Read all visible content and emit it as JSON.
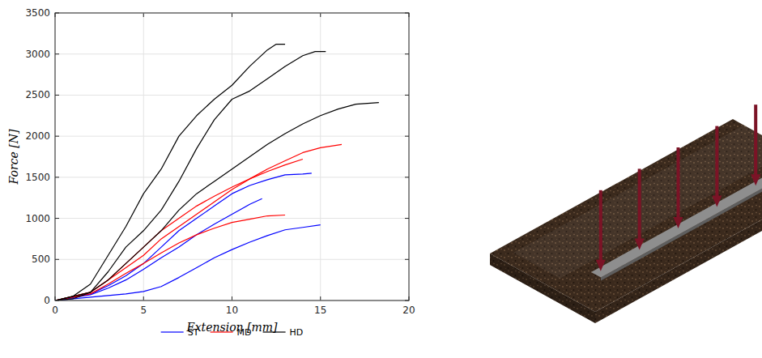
{
  "chart_data": {
    "type": "line",
    "xlabel": "Extension [mm]",
    "ylabel": "Force [N]",
    "xlim": [
      0,
      20
    ],
    "xticks": [
      0,
      5,
      10,
      15,
      20
    ],
    "ylim": [
      0,
      3500
    ],
    "yticks": [
      0,
      500,
      1000,
      1500,
      2000,
      2500,
      3000,
      3500
    ],
    "grid": true,
    "legend": "bottom",
    "series": [
      {
        "name": "ST",
        "color": "#0000ff",
        "x": [
          0,
          2,
          3,
          4,
          5,
          6,
          7,
          8,
          9,
          10,
          11,
          12,
          13,
          14,
          14.5
        ],
        "values": [
          0,
          80,
          180,
          300,
          450,
          650,
          850,
          1000,
          1150,
          1300,
          1400,
          1470,
          1530,
          1540,
          1550
        ]
      },
      {
        "name": "ST",
        "color": "#0000ff",
        "x": [
          0,
          2,
          3,
          4,
          5,
          6,
          7,
          8,
          9,
          10,
          11,
          11.7
        ],
        "values": [
          0,
          70,
          150,
          250,
          380,
          520,
          650,
          800,
          930,
          1050,
          1170,
          1240
        ]
      },
      {
        "name": "ST",
        "color": "#0000ff",
        "x": [
          0,
          2,
          3,
          4,
          5,
          6,
          7,
          8,
          9,
          10,
          11,
          12,
          13,
          14,
          15
        ],
        "values": [
          0,
          40,
          60,
          80,
          110,
          170,
          280,
          400,
          520,
          620,
          710,
          790,
          860,
          890,
          920
        ]
      },
      {
        "name": "MD",
        "color": "#ff0000",
        "x": [
          0,
          2,
          3,
          4,
          5,
          6,
          7,
          8,
          9,
          10,
          11,
          12,
          13,
          14,
          15,
          16.2
        ],
        "values": [
          0,
          100,
          250,
          400,
          550,
          750,
          900,
          1050,
          1200,
          1350,
          1480,
          1600,
          1700,
          1800,
          1860,
          1900
        ]
      },
      {
        "name": "MD",
        "color": "#ff0000",
        "x": [
          0,
          2,
          3,
          4,
          5,
          6,
          7,
          8,
          9,
          10,
          11,
          12,
          13,
          14
        ],
        "values": [
          0,
          100,
          250,
          450,
          650,
          850,
          1000,
          1150,
          1270,
          1380,
          1480,
          1570,
          1650,
          1720
        ]
      },
      {
        "name": "MD",
        "color": "#ff0000",
        "x": [
          0,
          2,
          3,
          4,
          5,
          6,
          7,
          8,
          9,
          10,
          11,
          12,
          13
        ],
        "values": [
          0,
          80,
          200,
          330,
          450,
          580,
          700,
          800,
          880,
          950,
          990,
          1030,
          1040
        ]
      },
      {
        "name": "HD",
        "color": "#000000",
        "x": [
          0,
          1,
          2,
          3,
          4,
          5,
          6,
          7,
          8,
          9,
          10,
          11,
          12,
          12.5,
          13
        ],
        "values": [
          0,
          50,
          200,
          550,
          900,
          1300,
          1600,
          2000,
          2250,
          2450,
          2620,
          2850,
          3050,
          3120,
          3120
        ]
      },
      {
        "name": "HD",
        "color": "#000000",
        "x": [
          0,
          1,
          2,
          3,
          4,
          5,
          6,
          7,
          8,
          9,
          10,
          11,
          12,
          13,
          14,
          14.7,
          15.3
        ],
        "values": [
          0,
          20,
          100,
          350,
          650,
          850,
          1100,
          1450,
          1850,
          2200,
          2450,
          2550,
          2700,
          2850,
          2980,
          3030,
          3030
        ]
      },
      {
        "name": "HD",
        "color": "#000000",
        "x": [
          0,
          2,
          3,
          4,
          5,
          6,
          7,
          8,
          9,
          10,
          11,
          12,
          13,
          14,
          15,
          16,
          17,
          18.3
        ],
        "values": [
          0,
          100,
          250,
          450,
          650,
          850,
          1100,
          1300,
          1450,
          1600,
          1750,
          1900,
          2030,
          2150,
          2250,
          2330,
          2390,
          2410
        ]
      }
    ]
  }
}
